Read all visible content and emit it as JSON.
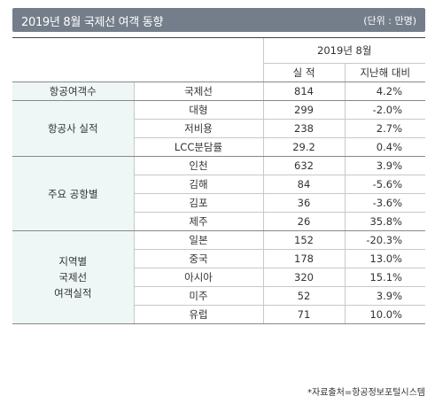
{
  "header": {
    "title": "2019년 8월 국제선 여객 동향",
    "unit": "(단위 : 만명)"
  },
  "table": {
    "period": "2019년 8월",
    "col_actual": "실  적",
    "col_change": "지난해 대비",
    "groups": [
      {
        "label": "항공여객수",
        "rows": [
          {
            "item": "국제선",
            "value": "814",
            "change": "4.2%"
          }
        ]
      },
      {
        "label": "항공사 실적",
        "rows": [
          {
            "item": "대형",
            "value": "299",
            "change": "-2.0%"
          },
          {
            "item": "저비용",
            "value": "238",
            "change": "2.7%"
          },
          {
            "item": "LCC분담률",
            "value": "29.2",
            "change": "0.4%"
          }
        ]
      },
      {
        "label": "주요 공항별",
        "rows": [
          {
            "item": "인천",
            "value": "632",
            "change": "3.9%"
          },
          {
            "item": "김해",
            "value": "84",
            "change": "-5.6%"
          },
          {
            "item": "김포",
            "value": "36",
            "change": "-3.6%"
          },
          {
            "item": "제주",
            "value": "26",
            "change": "35.8%"
          }
        ]
      },
      {
        "label_lines": [
          "지역별",
          "국제선",
          "여객실적"
        ],
        "rows": [
          {
            "item": "일본",
            "value": "152",
            "change": "-20.3%"
          },
          {
            "item": "중국",
            "value": "178",
            "change": "13.0%"
          },
          {
            "item": "아시아",
            "value": "320",
            "change": "15.1%"
          },
          {
            "item": "미주",
            "value": "52",
            "change": "3.9%"
          },
          {
            "item": "유럽",
            "value": "71",
            "change": "10.0%"
          }
        ]
      }
    ]
  },
  "source": "*자료출처=항공정보포털시스템"
}
